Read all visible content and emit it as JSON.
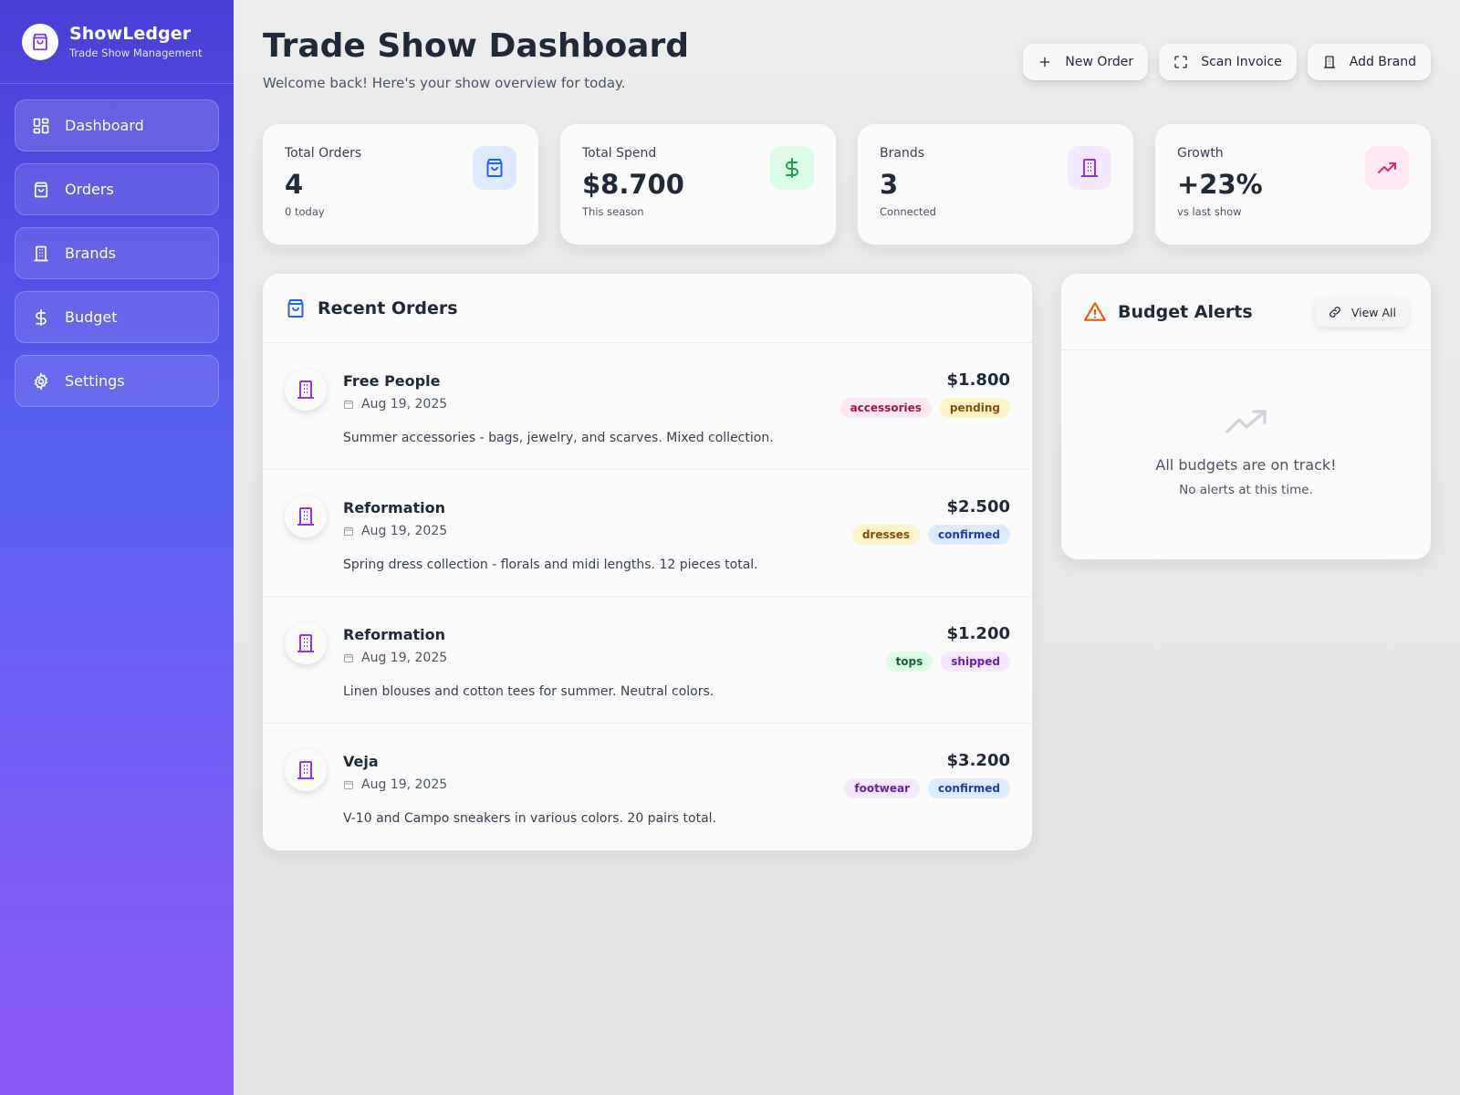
{
  "app": {
    "name": "ShowLedger",
    "tagline": "Trade Show Management"
  },
  "sidebar": {
    "items": [
      {
        "label": "Dashboard",
        "icon": "dashboard-grid-icon"
      },
      {
        "label": "Orders",
        "icon": "shopping-bag-icon"
      },
      {
        "label": "Brands",
        "icon": "building-icon"
      },
      {
        "label": "Budget",
        "icon": "dollar-icon"
      },
      {
        "label": "Settings",
        "icon": "gear-icon"
      }
    ]
  },
  "header": {
    "title": "Trade Show Dashboard",
    "subtitle": "Welcome back! Here's your show overview for today.",
    "actions": {
      "new_order": "New Order",
      "scan_invoice": "Scan Invoice",
      "add_brand": "Add Brand"
    }
  },
  "stats": [
    {
      "label": "Total Orders",
      "value": "4",
      "note": "0 today",
      "icon": "shopping-bag-icon",
      "color": "#2563eb",
      "bg": "#dbeafe"
    },
    {
      "label": "Total Spend",
      "value": "$8.700",
      "note": "This season",
      "icon": "dollar-icon",
      "color": "#16a34a",
      "bg": "#dcfce7"
    },
    {
      "label": "Brands",
      "value": "3",
      "note": "Connected",
      "icon": "building-icon",
      "color": "#9333ea",
      "bg": "#f3e8ff"
    },
    {
      "label": "Growth",
      "value": "+23%",
      "note": "vs last show",
      "icon": "trending-up-icon",
      "color": "#db2777",
      "bg": "#fce7f3"
    }
  ],
  "recent_orders": {
    "title": "Recent Orders",
    "orders": [
      {
        "brand": "Free People",
        "date": "Aug 19, 2025",
        "description": "Summer accessories - bags, jewelry, and scarves. Mixed collection.",
        "amount": "$1.800",
        "tags": [
          {
            "label": "accessories",
            "color": "#9d174d",
            "bg": "#fce7f3"
          },
          {
            "label": "pending",
            "color": "#854d0e",
            "bg": "#fef3c7"
          }
        ]
      },
      {
        "brand": "Reformation",
        "date": "Aug 19, 2025",
        "description": "Spring dress collection - florals and midi lengths. 12 pieces total.",
        "amount": "$2.500",
        "tags": [
          {
            "label": "dresses",
            "color": "#854d0e",
            "bg": "#fef3c7"
          },
          {
            "label": "confirmed",
            "color": "#1e40af",
            "bg": "#dbeafe"
          }
        ]
      },
      {
        "brand": "Reformation",
        "date": "Aug 19, 2025",
        "description": "Linen blouses and cotton tees for summer. Neutral colors.",
        "amount": "$1.200",
        "tags": [
          {
            "label": "tops",
            "color": "#166534",
            "bg": "#dcfce7"
          },
          {
            "label": "shipped",
            "color": "#6b21a8",
            "bg": "#f3e8ff"
          }
        ]
      },
      {
        "brand": "Veja",
        "date": "Aug 19, 2025",
        "description": "V-10 and Campo sneakers in various colors. 20 pairs total.",
        "amount": "$3.200",
        "tags": [
          {
            "label": "footwear",
            "color": "#6b21a8",
            "bg": "#f3e8ff"
          },
          {
            "label": "confirmed",
            "color": "#1e40af",
            "bg": "#dbeafe"
          }
        ]
      }
    ]
  },
  "budget_alerts": {
    "title": "Budget Alerts",
    "view_all": "View All",
    "empty_title": "All budgets are on track!",
    "empty_sub": "No alerts at this time."
  }
}
